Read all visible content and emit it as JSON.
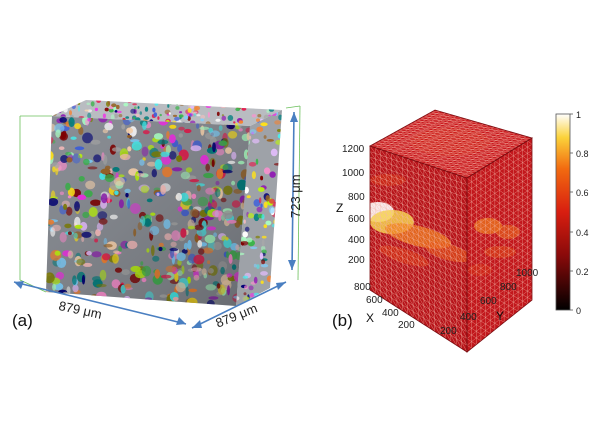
{
  "panel_a": {
    "label": "(a)",
    "dim_width": "879 μm",
    "dim_depth": "879 μm",
    "dim_height": "723 μm"
  },
  "panel_b": {
    "label": "(b)",
    "z_axis_label": "Z",
    "x_axis_label": "X",
    "y_axis_label": "Y",
    "z_ticks": [
      "1200",
      "1000",
      "800",
      "600",
      "400",
      "200"
    ],
    "x_ticks": [
      "800",
      "600",
      "400",
      "200"
    ],
    "y_ticks": [
      "200",
      "400",
      "600",
      "800",
      "1000"
    ],
    "colorbar_ticks": [
      "1",
      "0.8",
      "0.6",
      "0.4",
      "0.2",
      "0"
    ]
  },
  "colors": {
    "dimension_line": "#4a7fc1",
    "box_edge": "#6abf5a",
    "cube_base": "#c0161b"
  }
}
